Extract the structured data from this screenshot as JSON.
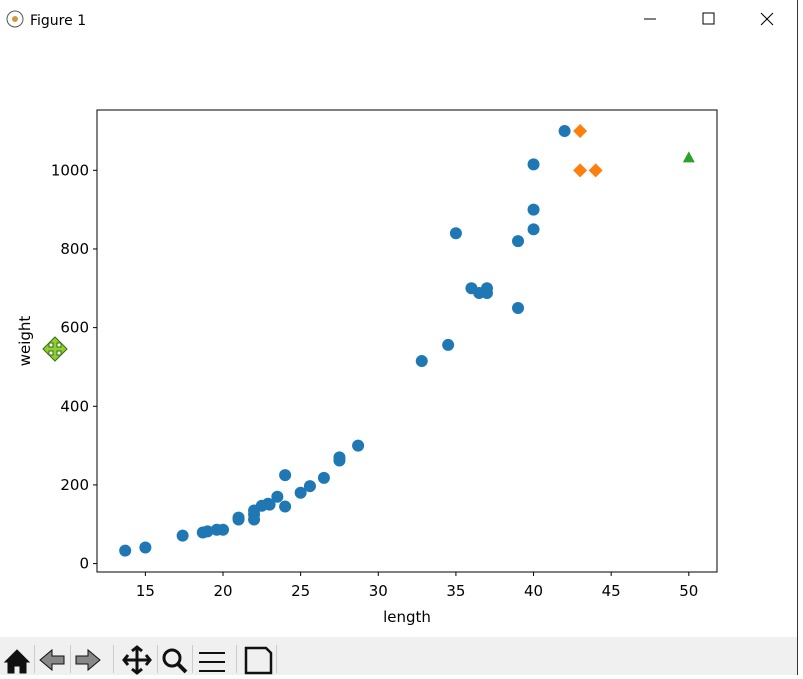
{
  "window": {
    "title": "Figure 1"
  },
  "chart_data": {
    "type": "scatter",
    "x_label": "length",
    "y_label": "weight",
    "xlim": [
      11.885,
      51.815
    ],
    "xticks": [
      15,
      20,
      25,
      30,
      35,
      40,
      45,
      50
    ],
    "ylim": [
      -21.4,
      1153.4
    ],
    "yticks": [
      0,
      200,
      400,
      600,
      800,
      1000
    ],
    "series": [
      {
        "color": "#1f77b4",
        "marker": "circle",
        "x": [
          13.7,
          15,
          17.4,
          18.7,
          19,
          19.6,
          20,
          21,
          21,
          22,
          22,
          22,
          22.5,
          23,
          22.9,
          23.5,
          24,
          24,
          25,
          25.6,
          26.5,
          27.5,
          27.5,
          28.7,
          32.8,
          34.5,
          35,
          36,
          36.5,
          37,
          37,
          39,
          39,
          40,
          40,
          40,
          42
        ],
        "values": [
          33,
          41,
          71,
          79,
          82,
          86,
          86,
          112,
          117,
          112,
          125,
          135,
          147,
          150,
          152,
          170,
          145,
          225,
          180,
          197,
          218,
          262,
          270,
          300,
          515,
          556,
          840,
          700,
          688,
          688,
          700,
          650,
          820,
          850,
          900,
          1015,
          1100
        ]
      },
      {
        "color": "#ff7f0e",
        "marker": "diamond",
        "x": [
          43,
          43,
          44
        ],
        "values": [
          1100,
          1000,
          1000
        ]
      },
      {
        "color": "#2ca02c",
        "marker": "triangle",
        "x": [
          50
        ],
        "values": [
          1033
        ]
      }
    ]
  }
}
